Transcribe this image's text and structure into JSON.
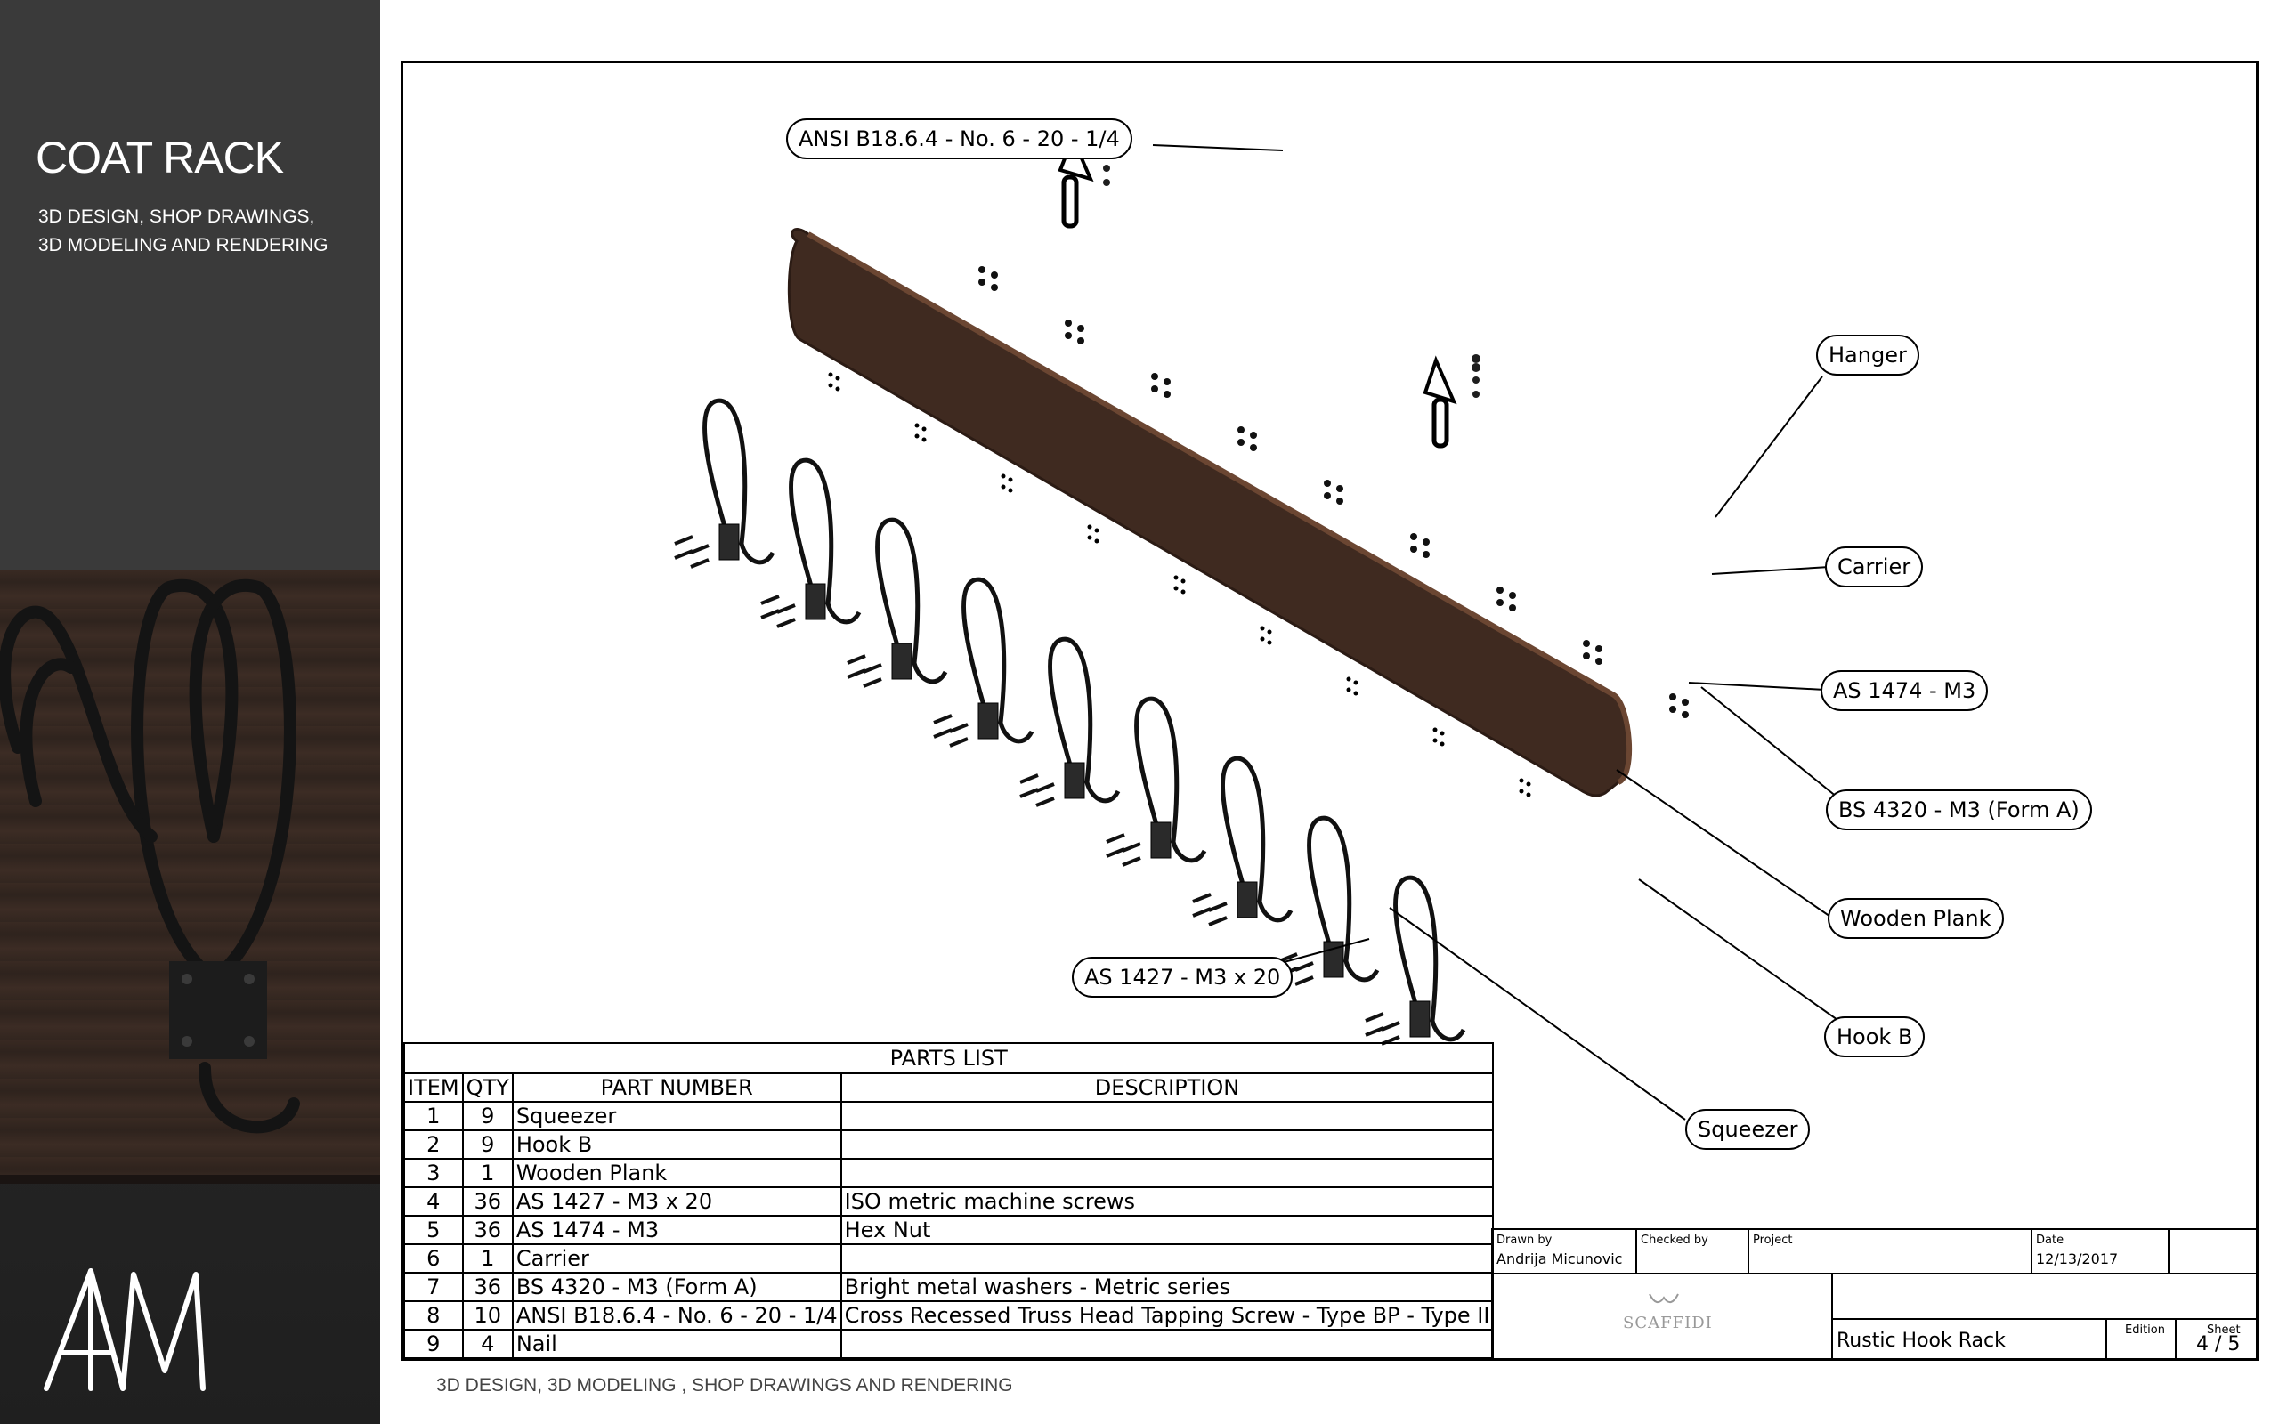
{
  "sidebar": {
    "title": "COAT RACK",
    "subtitle": "3D DESIGN, SHOP DRAWINGS, 3D MODELING AND RENDERING",
    "logo_text": "AM"
  },
  "callouts": {
    "ansi": "ANSI B18.6.4 - No. 6 - 20 - 1/4",
    "hanger": "Hanger",
    "carrier": "Carrier",
    "as1474": "AS 1474 - M3",
    "bs4320": "BS 4320 - M3 (Form A)",
    "plank": "Wooden Plank",
    "as1427": "AS 1427 - M3 x 20",
    "hookb": "Hook B",
    "squeezer": "Squeezer"
  },
  "parts_list": {
    "caption": "PARTS LIST",
    "headers": [
      "ITEM",
      "QTY",
      "PART NUMBER",
      "DESCRIPTION"
    ],
    "rows": [
      [
        "1",
        "9",
        "Squeezer",
        ""
      ],
      [
        "2",
        "9",
        "Hook B",
        ""
      ],
      [
        "3",
        "1",
        "Wooden Plank",
        ""
      ],
      [
        "4",
        "36",
        "AS 1427 - M3 x 20",
        "ISO metric machine screws"
      ],
      [
        "5",
        "36",
        "AS 1474 - M3",
        "Hex Nut"
      ],
      [
        "6",
        "1",
        "Carrier",
        ""
      ],
      [
        "7",
        "36",
        "BS 4320 - M3 (Form A)",
        "Bright metal washers - Metric series"
      ],
      [
        "8",
        "10",
        "ANSI B18.6.4 - No. 6 - 20 - 1/4",
        "Cross Recessed Truss Head Tapping Screw - Type BP - Type II"
      ],
      [
        "9",
        "4",
        "Nail",
        ""
      ]
    ]
  },
  "title_block": {
    "drawn_by_label": "Drawn by",
    "drawn_by": "Andrija Micunovic",
    "checked_by_label": "Checked by",
    "checked_by": "",
    "project_label": "Project",
    "project": "",
    "date_label": "Date",
    "date": "12/13/2017",
    "company": "SCAFFIDI",
    "title": "Rustic Hook Rack",
    "edition_label": "Edition",
    "edition": "",
    "sheet_label": "Sheet",
    "sheet": "4 / 5"
  },
  "footer": "3D DESIGN, 3D MODELING , SHOP DRAWINGS AND RENDERING",
  "colors": {
    "sidebar_bg": "#3a3a3a",
    "plank": "#4a3024"
  }
}
